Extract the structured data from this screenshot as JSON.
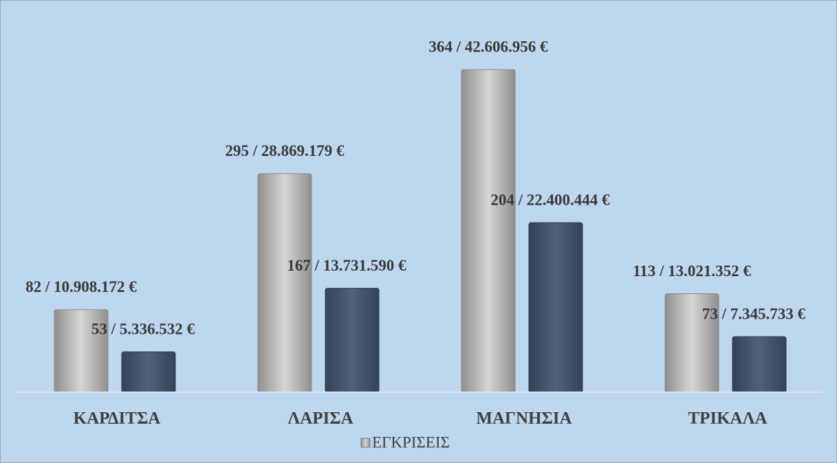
{
  "chart_data": {
    "type": "bar",
    "categories": [
      "ΚΑΡΔΙΤΣΑ",
      "ΛΑΡΙΣΑ",
      "ΜΑΓΝΗΣΙΑ",
      "ΤΡΙΚΑΛΑ"
    ],
    "series": [
      {
        "name": "ΕΓΚΡΙΣΕΙΣ",
        "color": "#b5b5b5",
        "values": [
          10908172,
          28869179,
          42606956,
          13021352
        ],
        "value_labels": [
          "82 / 10.908.172 €",
          "295 / 28.869.179 €",
          "364 / 42.606.956 €",
          "113 / 13.021.352 €"
        ]
      },
      {
        "color": "#44546a",
        "values": [
          5336532,
          13731590,
          22400444,
          7345733
        ],
        "value_labels": [
          "53 / 5.336.532 €",
          "167 / 13.731.590 €",
          "204 / 22.400.444 €",
          "73 / 7.345.733 €"
        ]
      }
    ],
    "ylim": [
      0,
      45000000
    ],
    "legend": "bottom"
  }
}
